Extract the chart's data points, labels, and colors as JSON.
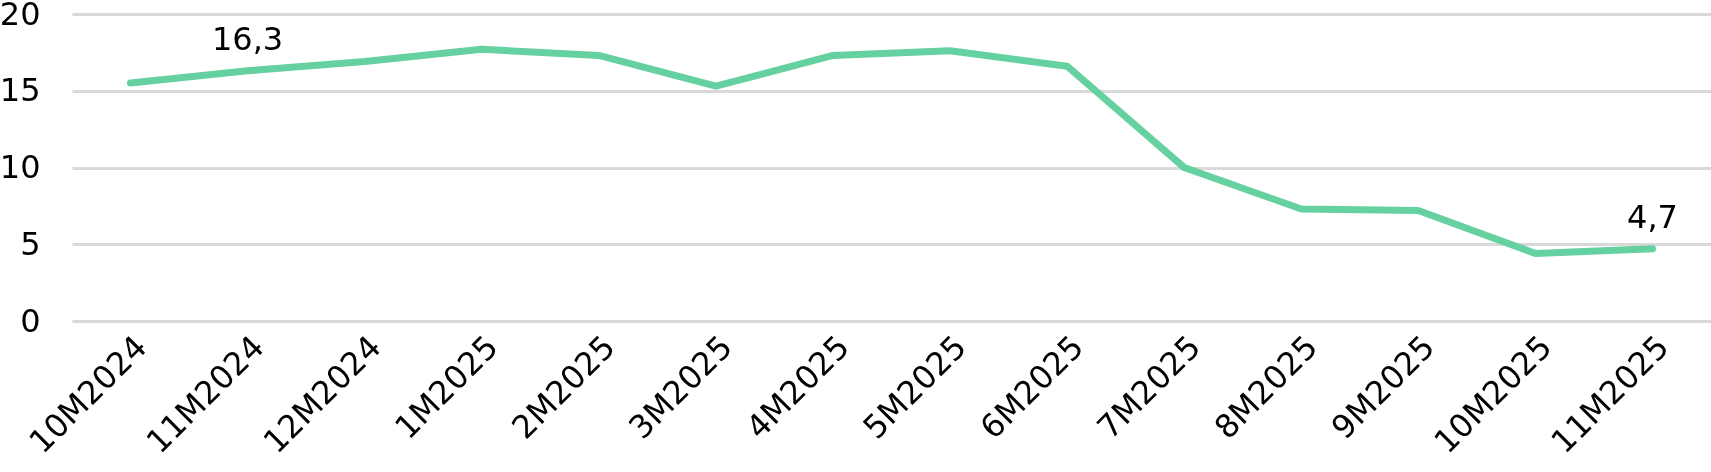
{
  "chart_data": {
    "type": "line",
    "categories": [
      "10M2024",
      "11M2024",
      "12M2024",
      "1M2025",
      "2M2025",
      "3M2025",
      "4M2025",
      "5M2025",
      "6M2025",
      "7M2025",
      "8M2025",
      "9M2025",
      "10M2025",
      "11M2025"
    ],
    "series": [
      {
        "color": "#66d1a0",
        "values": [
          15.5,
          16.3,
          16.9,
          17.7,
          17.3,
          15.3,
          17.3,
          17.6,
          16.6,
          10.0,
          7.3,
          7.2,
          4.4,
          4.7
        ],
        "value_labels": [
          null,
          "16,3",
          null,
          null,
          null,
          null,
          null,
          null,
          null,
          null,
          null,
          null,
          null,
          "4,7"
        ]
      }
    ],
    "ylim": [
      0,
      20
    ],
    "yticks": [
      0,
      5,
      10,
      15,
      20
    ],
    "grid": "y",
    "line_style": "solid"
  }
}
